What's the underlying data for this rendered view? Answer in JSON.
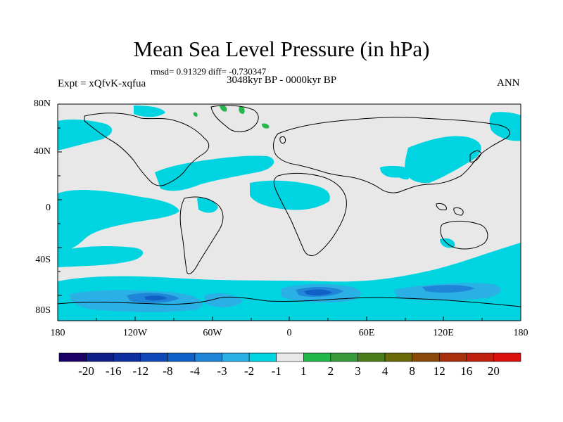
{
  "title": "Mean Sea Level Pressure (in hPa)",
  "stats_line": "rmsd= 0.91329 diff= -0.730347",
  "period": "3048kyr BP - 0000kyr BP",
  "experiment": "Expt = xQfvK-xqfua",
  "season": "ANN",
  "lat_labels": [
    "80N",
    "40N",
    "0",
    "40S",
    "80S"
  ],
  "lon_labels": [
    "180",
    "120W",
    "60W",
    "0",
    "60E",
    "120E",
    "180"
  ],
  "colorbar": {
    "labels": [
      "-20",
      "-16",
      "-12",
      "-8",
      "-4",
      "-3",
      "-2",
      "-1",
      "1",
      "2",
      "3",
      "4",
      "8",
      "12",
      "16",
      "20"
    ],
    "colors": [
      "#1a0066",
      "#0f1f8a",
      "#0c2fa0",
      "#0d47b8",
      "#1060c8",
      "#1f85d8",
      "#2ab0e4",
      "#00d4e0",
      "#e8e8e8",
      "#22b84a",
      "#3a9a3a",
      "#4a7c1a",
      "#6b6a0a",
      "#8a4a0a",
      "#a8300a",
      "#c02010",
      "#dd1010"
    ]
  },
  "map_colors": {
    "background": "#e8e8e8",
    "minus1": "#00d4e0",
    "minus2": "#2ab0e4",
    "minus3": "#1f85d8",
    "minus4": "#1060c8",
    "plus1": "#22b84a"
  }
}
